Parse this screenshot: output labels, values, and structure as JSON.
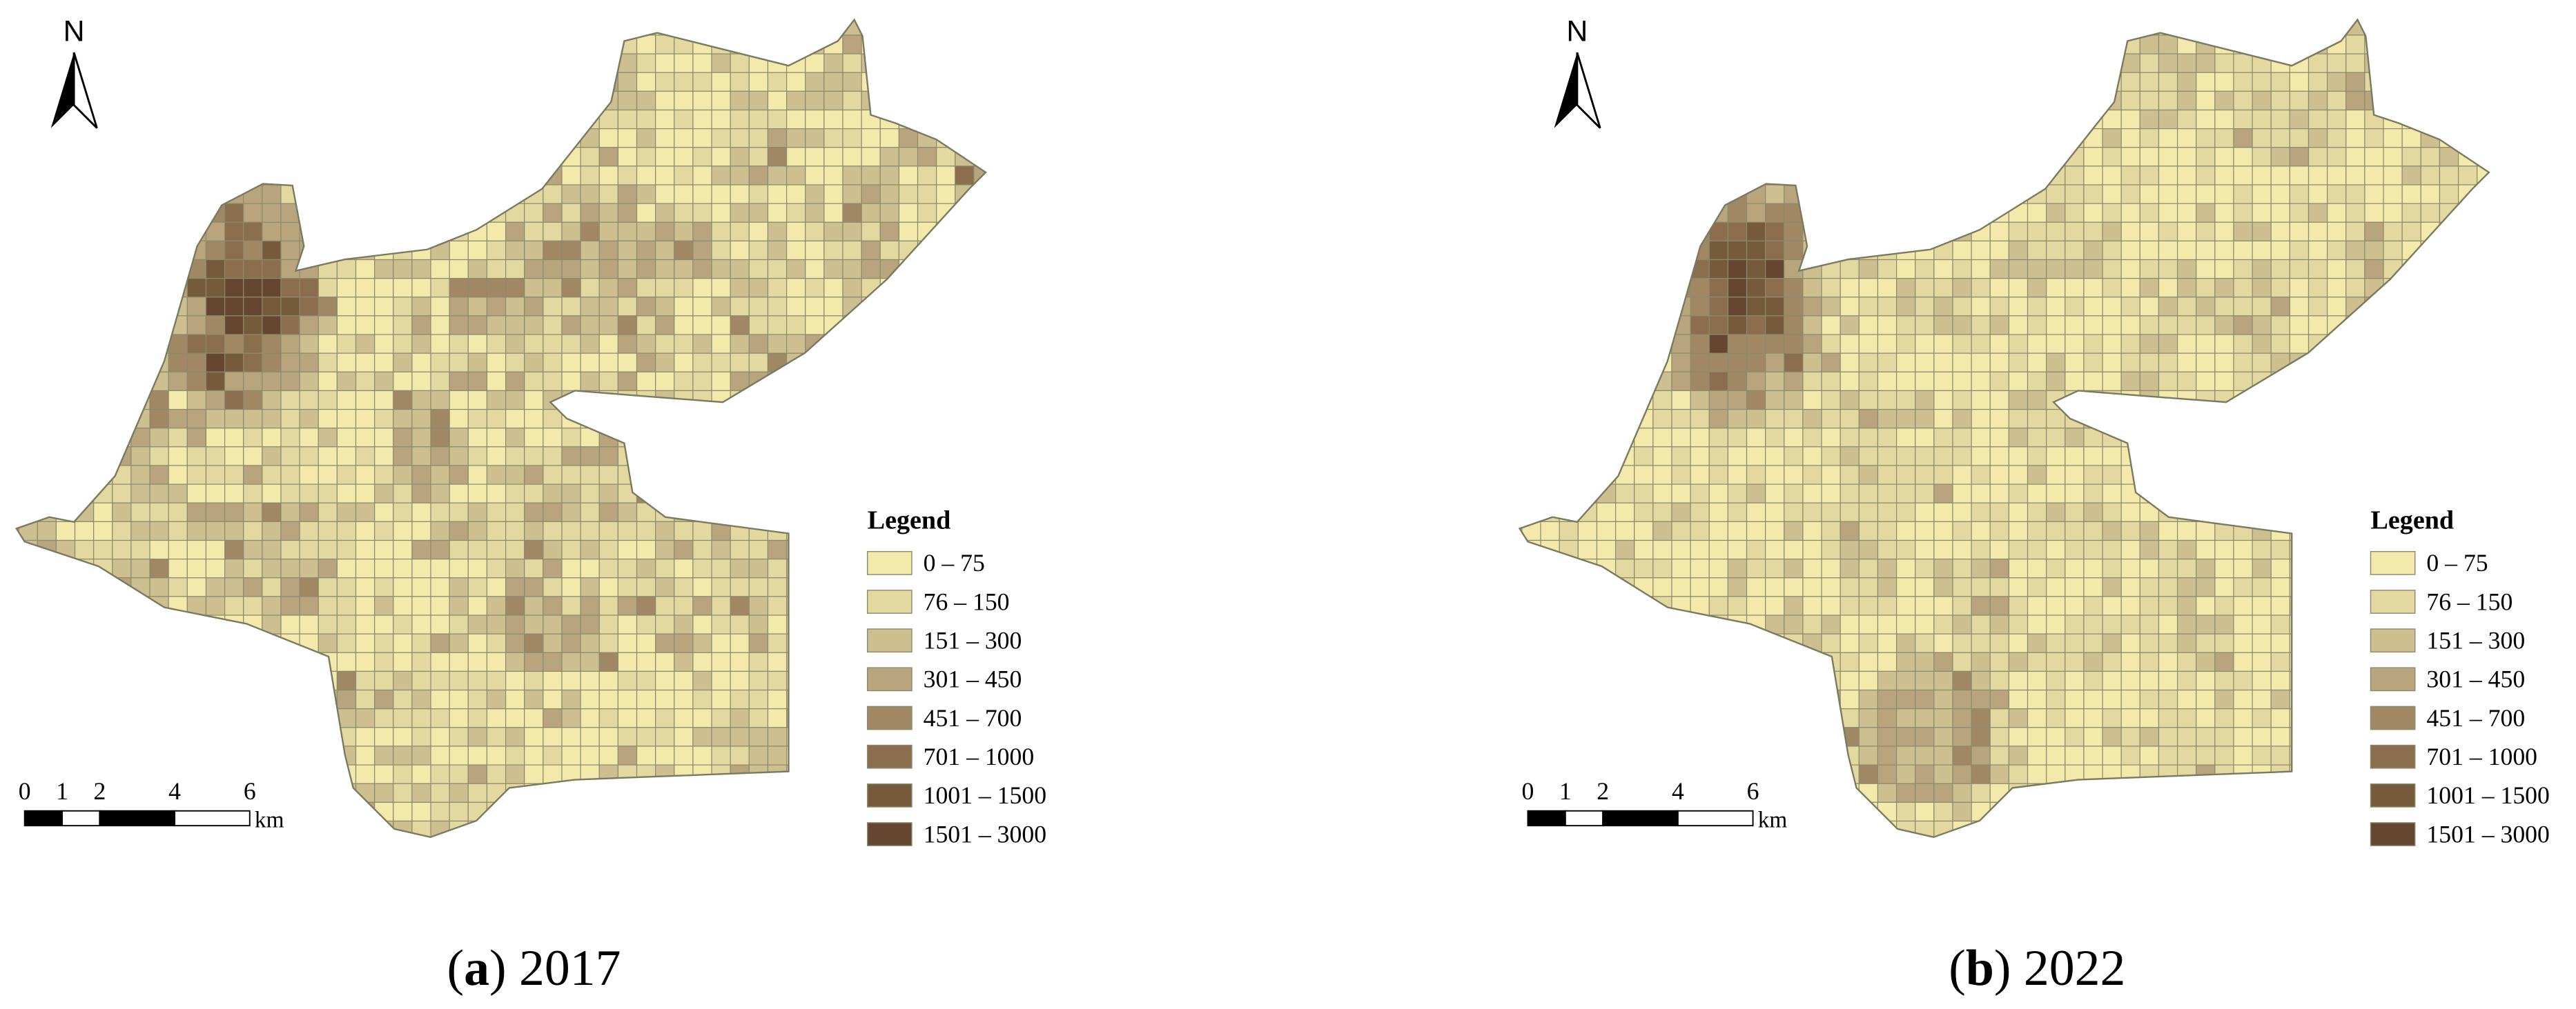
{
  "panels": [
    {
      "north": "N",
      "scale_bar": {
        "ticks": [
          0,
          1,
          2,
          4,
          6
        ],
        "unit": "km"
      },
      "legend": {
        "title": "Legend",
        "items": [
          {
            "label": "0 – 75",
            "color": "#f2e9ab"
          },
          {
            "label": "76 – 150",
            "color": "#e3d8a0"
          },
          {
            "label": "151 – 300",
            "color": "#cdbf8f"
          },
          {
            "label": "301 – 450",
            "color": "#b9a57d"
          },
          {
            "label": "451 – 700",
            "color": "#a08864"
          },
          {
            "label": "701 – 1000",
            "color": "#8a6e4e"
          },
          {
            "label": "1001 – 1500",
            "color": "#765a3c"
          },
          {
            "label": "1501 – 3000",
            "color": "#654630"
          }
        ]
      },
      "caption": {
        "prefix": "(",
        "letter": "a",
        "suffix": ") 2017"
      }
    },
    {
      "north": "N",
      "scale_bar": {
        "ticks": [
          0,
          1,
          2,
          4,
          6
        ],
        "unit": "km"
      },
      "legend": {
        "title": "Legend",
        "items": [
          {
            "label": "0 – 75",
            "color": "#f2e9ab"
          },
          {
            "label": "76 – 150",
            "color": "#e3d8a0"
          },
          {
            "label": "151 – 300",
            "color": "#cdbf8f"
          },
          {
            "label": "301 – 450",
            "color": "#b9a57d"
          },
          {
            "label": "451 – 700",
            "color": "#a08864"
          },
          {
            "label": "701 – 1000",
            "color": "#8a6e4e"
          },
          {
            "label": "1001 – 1500",
            "color": "#765a3c"
          },
          {
            "label": "1501 – 3000",
            "color": "#654630"
          }
        ]
      },
      "caption": {
        "prefix": "(",
        "letter": "b",
        "suffix": ") 2022"
      }
    }
  ]
}
